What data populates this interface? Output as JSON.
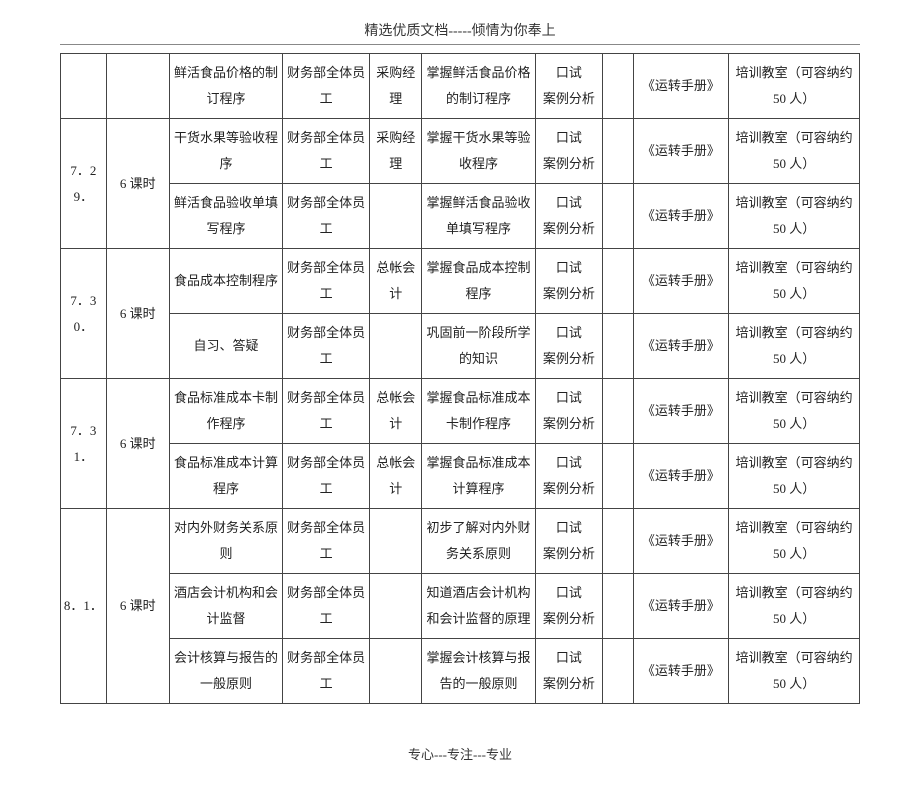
{
  "header": "精选优质文档-----倾情为你奉上",
  "footer": "专心---专注---专业",
  "dates": {
    "d729": "7．29．",
    "d730": "7．30．",
    "d731": "7．31．",
    "d81": "8．1．"
  },
  "hours": "6 课时",
  "rows": {
    "r0": {
      "topic": "鲜活食品价格的制订程序",
      "attend": "财务部全体员工",
      "instr": "采购经理",
      "goal": "掌握鲜活食品价格的制订程序",
      "method": "口试\n案例分析",
      "material": "《运转手册》",
      "room": "培训教室（可容纳约 50 人）"
    },
    "r1": {
      "topic": "干货水果等验收程序",
      "attend": "财务部全体员工",
      "instr": "采购经理",
      "goal": "掌握干货水果等验收程序",
      "method": "口试\n案例分析",
      "material": "《运转手册》",
      "room": "培训教室（可容纳约 50 人）"
    },
    "r2": {
      "topic": "鲜活食品验收单填写程序",
      "attend": "财务部全体员工",
      "instr": "",
      "goal": "掌握鲜活食品验收单填写程序",
      "method": "口试\n案例分析",
      "material": "《运转手册》",
      "room": "培训教室（可容纳约 50 人）"
    },
    "r3": {
      "topic": "食品成本控制程序",
      "attend": "财务部全体员工",
      "instr": "总帐会计",
      "goal": "掌握食品成本控制程序",
      "method": "口试\n案例分析",
      "material": "《运转手册》",
      "room": "培训教室（可容纳约 50 人）"
    },
    "r4": {
      "topic": "自习、答疑",
      "attend": "财务部全体员工",
      "instr": "",
      "goal": "巩固前一阶段所学的知识",
      "method": "口试\n案例分析",
      "material": "《运转手册》",
      "room": "培训教室（可容纳约 50 人）"
    },
    "r5": {
      "topic": "食品标准成本卡制作程序",
      "attend": "财务部全体员工",
      "instr": "总帐会计",
      "goal": "掌握食品标准成本卡制作程序",
      "method": "口试\n案例分析",
      "material": "《运转手册》",
      "room": "培训教室（可容纳约 50 人）"
    },
    "r6": {
      "topic": "食品标准成本计算程序",
      "attend": "财务部全体员工",
      "instr": "总帐会计",
      "goal": "掌握食品标准成本计算程序",
      "method": "口试\n案例分析",
      "material": "《运转手册》",
      "room": "培训教室（可容纳约 50 人）"
    },
    "r7": {
      "topic": "对内外财务关系原则",
      "attend": "财务部全体员工",
      "instr": "",
      "goal": "初步了解对内外财务关系原则",
      "method": "口试\n案例分析",
      "material": "《运转手册》",
      "room": "培训教室（可容纳约 50 人）"
    },
    "r8": {
      "topic": "酒店会计机构和会计监督",
      "attend": "财务部全体员工",
      "instr": "",
      "goal": "知道酒店会计机构和会计监督的原理",
      "method": "口试\n案例分析",
      "material": "《运转手册》",
      "room": "培训教室（可容纳约 50 人）"
    },
    "r9": {
      "topic": "会计核算与报告的一般原则",
      "attend": "财务部全体员工",
      "instr": "",
      "goal": "掌握会计核算与报告的一般原则",
      "method": "口试\n案例分析",
      "material": "《运转手册》",
      "room": "培训教室（可容纳约 50 人）"
    }
  }
}
